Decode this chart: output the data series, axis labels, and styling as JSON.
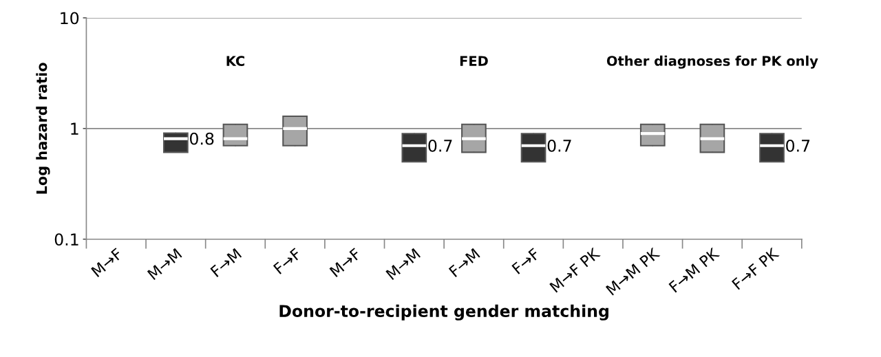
{
  "chart_data": {
    "type": "box",
    "xlabel": "Donor-to-recipient gender matching",
    "ylabel": "Log hazard ratio",
    "categories": [
      "M→F",
      "M→M",
      "F→M",
      "F→F",
      "M→F",
      "M→M",
      "F→M",
      "F→F",
      "M→F PK",
      "M→M PK",
      "F→M PK",
      "F→F PK"
    ],
    "boxes": [
      null,
      {
        "low": 0.61,
        "q1": 0.61,
        "median": 0.81,
        "q3": 0.91,
        "high": 0.91
      },
      {
        "low": 0.7,
        "q1": 0.7,
        "median": 0.81,
        "q3": 1.09,
        "high": 1.09
      },
      {
        "low": 0.7,
        "q1": 0.7,
        "median": 1.0,
        "q3": 1.29,
        "high": 1.29
      },
      null,
      {
        "low": 0.5,
        "q1": 0.5,
        "median": 0.7,
        "q3": 0.9,
        "high": 0.9
      },
      {
        "low": 0.61,
        "q1": 0.61,
        "median": 0.81,
        "q3": 1.09,
        "high": 1.09
      },
      {
        "low": 0.5,
        "q1": 0.5,
        "median": 0.7,
        "q3": 0.9,
        "high": 0.9
      },
      null,
      {
        "low": 0.7,
        "q1": 0.7,
        "median": 0.9,
        "q3": 1.09,
        "high": 1.09
      },
      {
        "low": 0.61,
        "q1": 0.61,
        "median": 0.81,
        "q3": 1.09,
        "high": 1.09
      },
      {
        "low": 0.5,
        "q1": 0.5,
        "median": 0.7,
        "q3": 0.9,
        "high": 0.9
      }
    ],
    "colors": [
      null,
      "#333333",
      "#a6a6a6",
      "#a6a6a6",
      null,
      "#333333",
      "#a6a6a6",
      "#333333",
      null,
      "#a6a6a6",
      "#a6a6a6",
      "#333333"
    ],
    "value_labels": [
      null,
      "0.8",
      null,
      null,
      null,
      "0.7",
      null,
      "0.7",
      null,
      null,
      null,
      "0.7"
    ],
    "annotations": [
      "KC",
      "FED",
      "Other diagnoses for PK only"
    ],
    "log": "y",
    "ylim": [
      0.1,
      10
    ],
    "yticks": [
      0.1,
      1,
      10
    ],
    "grid": "y"
  }
}
